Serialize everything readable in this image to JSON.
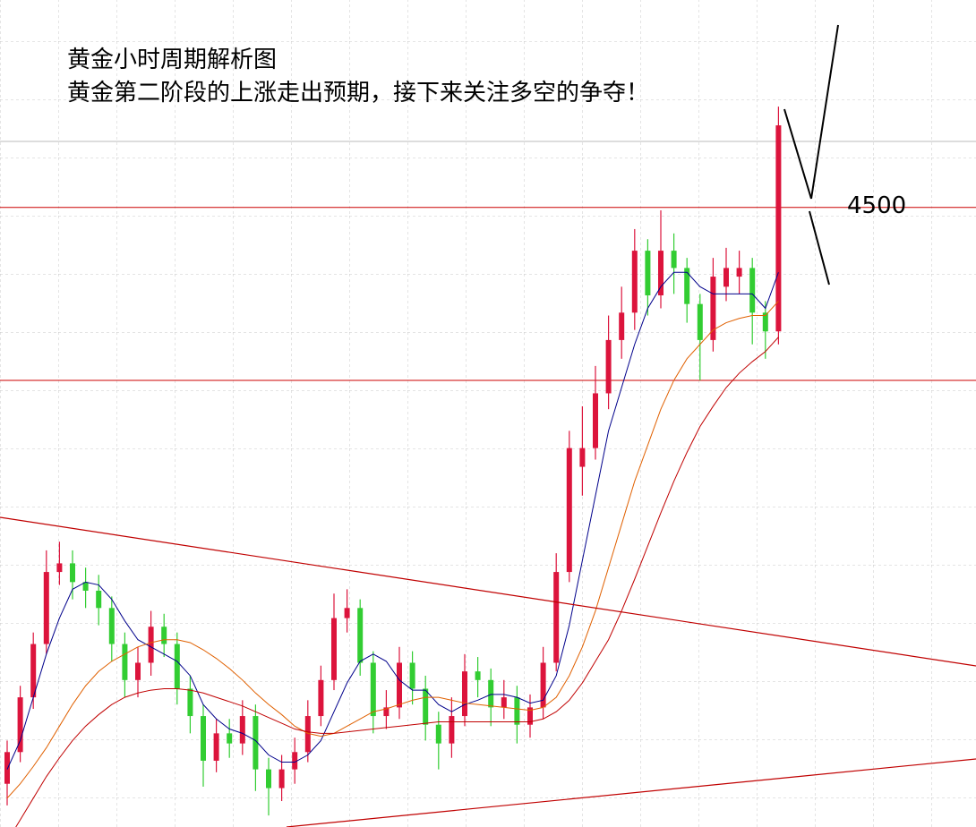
{
  "chart_data": {
    "type": "candlestick",
    "title": "黄金小时周期解析图",
    "subtitle": "黄金第二阶段的上涨走出预期，接下来关注多空的争夺！",
    "ylim": [
      4070,
      4644
    ],
    "open": [
      4100,
      4122,
      4160,
      4197,
      4247,
      4253,
      4240,
      4234,
      4222,
      4197,
      4172,
      4184,
      4209,
      4197,
      4166,
      4147,
      4116,
      4135,
      4128,
      4147,
      4110,
      4097,
      4110,
      4122,
      4147,
      4172,
      4215,
      4222,
      4184,
      4147,
      4153,
      4184,
      4166,
      4141,
      4128,
      4147,
      4178,
      4172,
      4153,
      4160,
      4141,
      4153,
      4184,
      4247,
      4320,
      4333,
      4371,
      4408,
      4427,
      4470,
      4439,
      4470,
      4458,
      4433,
      4408,
      4445,
      4452,
      4458,
      4427,
      4414
    ],
    "high": [
      4130,
      4168,
      4205,
      4262,
      4268,
      4262,
      4250,
      4245,
      4230,
      4205,
      4195,
      4220,
      4218,
      4205,
      4175,
      4155,
      4145,
      4145,
      4158,
      4155,
      4118,
      4120,
      4132,
      4158,
      4182,
      4232,
      4235,
      4228,
      4192,
      4165,
      4195,
      4192,
      4175,
      4150,
      4160,
      4190,
      4188,
      4180,
      4172,
      4168,
      4162,
      4195,
      4260,
      4345,
      4362,
      4390,
      4425,
      4445,
      4485,
      4478,
      4498,
      4482,
      4465,
      4440,
      4465,
      4472,
      4470,
      4465,
      4435,
      4570
    ],
    "low": [
      4085,
      4115,
      4152,
      4190,
      4238,
      4228,
      4222,
      4210,
      4185,
      4160,
      4160,
      4175,
      4188,
      4155,
      4135,
      4098,
      4108,
      4118,
      4120,
      4095,
      4078,
      4088,
      4100,
      4115,
      4140,
      4165,
      4205,
      4175,
      4135,
      4138,
      4145,
      4155,
      4130,
      4110,
      4118,
      4140,
      4160,
      4140,
      4145,
      4128,
      4132,
      4145,
      4178,
      4240,
      4300,
      4325,
      4360,
      4395,
      4415,
      4425,
      4430,
      4440,
      4420,
      4380,
      4400,
      4435,
      4440,
      4405,
      4395,
      4405
    ],
    "close": [
      4122,
      4160,
      4197,
      4247,
      4253,
      4240,
      4234,
      4222,
      4197,
      4172,
      4184,
      4209,
      4197,
      4166,
      4147,
      4116,
      4135,
      4128,
      4147,
      4110,
      4097,
      4110,
      4122,
      4147,
      4172,
      4215,
      4222,
      4184,
      4147,
      4153,
      4184,
      4166,
      4141,
      4128,
      4147,
      4178,
      4172,
      4153,
      4160,
      4141,
      4153,
      4184,
      4247,
      4333,
      4333,
      4371,
      4408,
      4427,
      4470,
      4439,
      4470,
      4458,
      4433,
      4408,
      4452,
      4458,
      4458,
      4427,
      4414,
      4557
    ],
    "up_color": "#dc143c",
    "down_color": "#32cd32",
    "lines": [
      {
        "color": "#00008b",
        "values": [
          4110,
          4130,
          4160,
          4190,
          4215,
          4235,
          4240,
          4238,
          4228,
          4213,
          4200,
          4195,
          4190,
          4185,
          4175,
          4155,
          4145,
          4138,
          4135,
          4130,
          4120,
          4115,
          4115,
          4120,
          4130,
          4150,
          4170,
          4185,
          4190,
          4185,
          4172,
          4165,
          4165,
          4155,
          4150,
          4155,
          4158,
          4162,
          4162,
          4160,
          4156,
          4158,
          4175,
          4210,
          4255,
          4300,
          4345,
          4375,
          4405,
          4430,
          4445,
          4455,
          4455,
          4445,
          4440,
          4440,
          4440,
          4440,
          4430,
          4455
        ]
      },
      {
        "color": "#e06000",
        "values": [
          4090,
          4100,
          4112,
          4125,
          4140,
          4155,
          4168,
          4178,
          4185,
          4190,
          4195,
          4198,
          4200,
          4200,
          4198,
          4193,
          4187,
          4180,
          4172,
          4163,
          4155,
          4148,
          4140,
          4135,
          4133,
          4135,
          4140,
          4145,
          4150,
          4152,
          4155,
          4158,
          4160,
          4160,
          4158,
          4156,
          4155,
          4154,
          4153,
          4152,
          4151,
          4153,
          4160,
          4175,
          4195,
          4220,
          4250,
          4280,
          4310,
          4335,
          4360,
          4380,
          4395,
          4405,
          4415,
          4420,
          4423,
          4425,
          4425,
          4435
        ]
      },
      {
        "color": "#c00000",
        "values": [
          4060,
          4075,
          4090,
          4105,
          4118,
          4130,
          4140,
          4148,
          4155,
          4160,
          4163,
          4165,
          4166,
          4166,
          4165,
          4163,
          4160,
          4157,
          4154,
          4150,
          4146,
          4142,
          4138,
          4136,
          4135,
          4135,
          4136,
          4137,
          4138,
          4139,
          4140,
          4141,
          4142,
          4143,
          4143,
          4143,
          4143,
          4143,
          4143,
          4143,
          4143,
          4145,
          4150,
          4158,
          4170,
          4185,
          4200,
          4220,
          4242,
          4265,
          4288,
          4310,
          4330,
          4348,
          4362,
          4375,
          4385,
          4393,
          4400,
          4410
        ]
      }
    ],
    "levels": [
      4500,
      4380
    ],
    "level_color": "#cc0000"
  }
}
